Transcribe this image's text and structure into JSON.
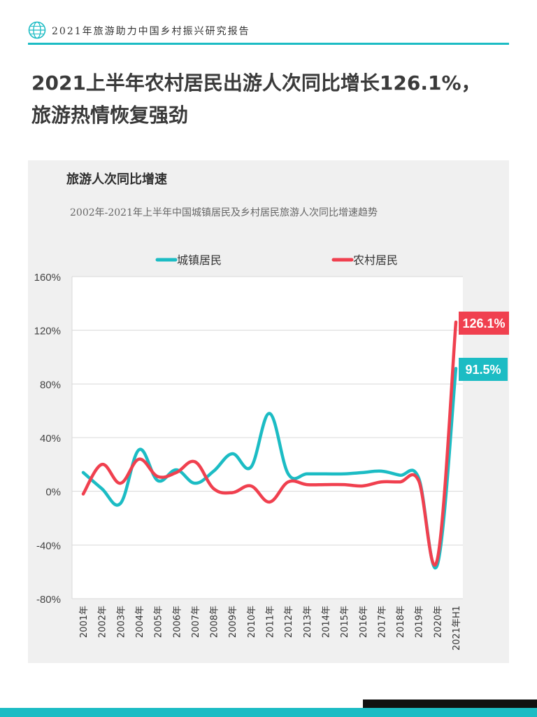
{
  "header": {
    "report_title": "2021年旅游助力中国乡村振兴研究报告"
  },
  "headline": {
    "line1": "2021上半年农村居民出游人次同比增长126.1%，",
    "line2": "旅游热情恢复强劲"
  },
  "colors": {
    "accent": "#1cbcc4",
    "urban": "#1cbcc4",
    "rural": "#f0404f",
    "panel": "#f0f0f0"
  },
  "chart_data": {
    "type": "line",
    "title": "旅游人次同比增速",
    "subtitle": "2002年-2021年上半年中国城镇居民及乡村居民旅游人次同比增速趋势",
    "categories": [
      "2001年",
      "2002年",
      "2003年",
      "2004年",
      "2005年",
      "2006年",
      "2007年",
      "2008年",
      "2009年",
      "2010年",
      "2011年",
      "2012年",
      "2013年",
      "2014年",
      "2015年",
      "2016年",
      "2017年",
      "2018年",
      "2019年",
      "2020年",
      "2021年H1"
    ],
    "y_ticks": [
      "160%",
      "120%",
      "80%",
      "40%",
      "0%",
      "-40%",
      "-80%"
    ],
    "ylim": [
      -80,
      160
    ],
    "legend_position": "top",
    "series": [
      {
        "name": "城镇居民",
        "color": "#1cbcc4",
        "values": [
          14,
          2,
          -9,
          31,
          8,
          16,
          6,
          15,
          28,
          18,
          58,
          13,
          13,
          13,
          13,
          14,
          15,
          12,
          10,
          -55,
          91.5
        ],
        "end_label": "91.5%"
      },
      {
        "name": "农村居民",
        "color": "#f0404f",
        "values": [
          -2,
          20,
          6,
          24,
          11,
          14,
          22,
          2,
          -1,
          4,
          -8,
          7,
          5,
          5,
          5,
          4,
          7,
          7,
          8,
          -51,
          126.1
        ],
        "end_label": "126.1%"
      }
    ]
  }
}
